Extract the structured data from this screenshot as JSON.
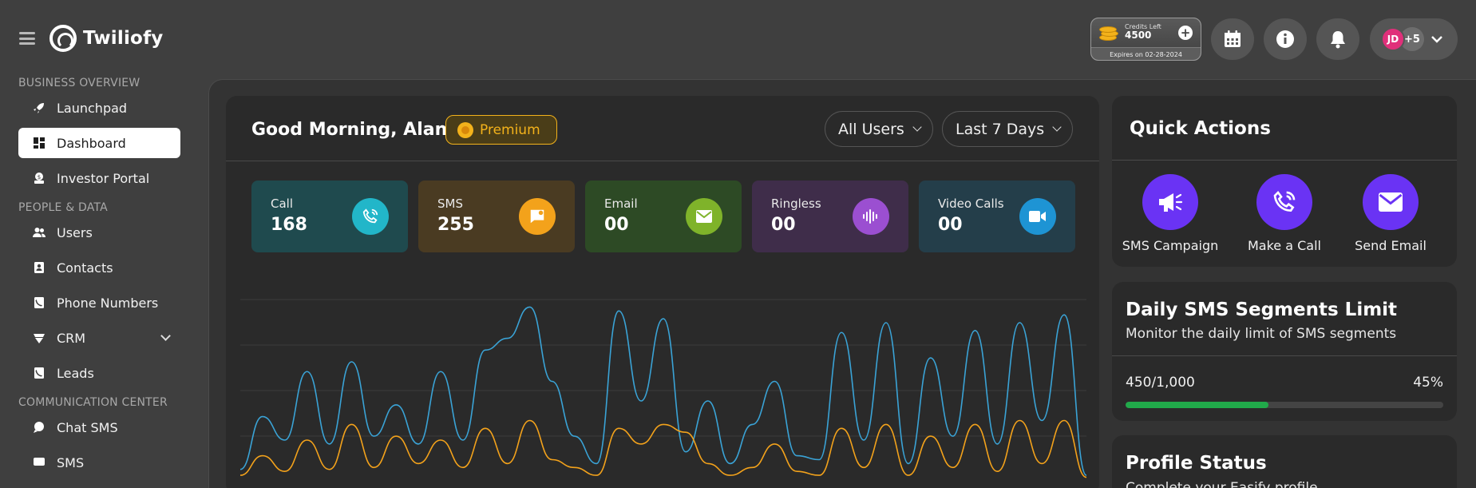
{
  "app": {
    "name": "Twiliofy"
  },
  "topbar": {
    "credits": {
      "label": "Credits Left",
      "value": "4500",
      "expires": "Expires on 02-28-2024",
      "add_symbol": "+"
    },
    "user": {
      "initials": "JD",
      "more_count": "+5"
    },
    "icons": [
      "calendar-icon",
      "info-icon",
      "bell-icon",
      "chevron-down-icon"
    ]
  },
  "sidebar": {
    "sections": [
      {
        "title": "BUSINESS OVERVIEW",
        "items": [
          {
            "label": "Launchpad",
            "icon": "rocket-icon"
          },
          {
            "label": "Dashboard",
            "icon": "dashboard-icon",
            "active": true
          },
          {
            "label": "Investor Portal",
            "icon": "investor-icon"
          }
        ]
      },
      {
        "title": "PEOPLE & DATA",
        "items": [
          {
            "label": "Users",
            "icon": "users-icon"
          },
          {
            "label": "Contacts",
            "icon": "contacts-icon"
          },
          {
            "label": "Phone Numbers",
            "icon": "phone-book-icon"
          },
          {
            "label": "CRM",
            "icon": "crm-icon",
            "expandable": true
          },
          {
            "label": "Leads",
            "icon": "leads-icon"
          }
        ]
      },
      {
        "title": "COMMUNICATION CENTER",
        "items": [
          {
            "label": "Chat SMS",
            "icon": "chat-icon"
          },
          {
            "label": "SMS",
            "icon": "sms-icon"
          }
        ]
      }
    ]
  },
  "main": {
    "greeting": "Good Morning, Alan",
    "badge": "Premium",
    "filters": {
      "users": "All Users",
      "range": "Last 7 Days"
    },
    "stats": [
      {
        "label": "Call",
        "value": "168",
        "icon": "phone-call-icon",
        "bg": "#1f4a4e",
        "accent": "#22b6c9"
      },
      {
        "label": "SMS",
        "value": "255",
        "icon": "message-icon",
        "bg": "#4a3b22",
        "accent": "#f3a21b"
      },
      {
        "label": "Email",
        "value": "00",
        "icon": "mail-icon",
        "bg": "#2d4a25",
        "accent": "#7fb32a"
      },
      {
        "label": "Ringless",
        "value": "00",
        "icon": "soundwave-icon",
        "bg": "#3f2d4a",
        "accent": "#9b4fd1"
      },
      {
        "label": "Video Calls",
        "value": "00",
        "icon": "video-icon",
        "bg": "#243e4a",
        "accent": "#1e94d4"
      }
    ]
  },
  "chart_data": {
    "type": "line",
    "title": "",
    "grid": true,
    "series": [
      {
        "color": "#3aa3d6",
        "values": [
          5,
          32,
          20,
          55,
          18,
          60,
          22,
          38,
          18,
          55,
          20,
          66,
          72,
          88,
          50,
          22,
          8,
          86,
          40,
          82,
          14,
          40,
          8,
          28,
          50,
          12,
          10,
          75,
          20,
          80,
          8,
          62,
          22,
          76,
          18,
          80,
          30,
          84,
          2
        ]
      },
      {
        "color": "#f3a21b",
        "values": [
          2,
          12,
          4,
          20,
          5,
          28,
          6,
          22,
          8,
          20,
          6,
          26,
          8,
          30,
          10,
          6,
          2,
          26,
          18,
          28,
          24,
          8,
          2,
          6,
          18,
          4,
          2,
          26,
          6,
          28,
          2,
          22,
          6,
          28,
          4,
          30,
          8,
          30,
          1
        ]
      }
    ]
  },
  "quick_actions": {
    "title": "Quick Actions",
    "items": [
      {
        "label": "SMS Campaign",
        "icon": "megaphone-icon"
      },
      {
        "label": "Make a Call",
        "icon": "phone-call-icon"
      },
      {
        "label": "Send Email",
        "icon": "mail-icon"
      }
    ]
  },
  "sms_limit": {
    "title": "Daily SMS Segments Limit",
    "subtitle": "Monitor the daily limit of SMS segments",
    "count": "450/1,000",
    "percent_text": "45%",
    "fraction": 0.45,
    "bar_color": "#21a94a"
  },
  "profile": {
    "title": "Profile Status",
    "subtitle": "Complete your Easify profile"
  }
}
